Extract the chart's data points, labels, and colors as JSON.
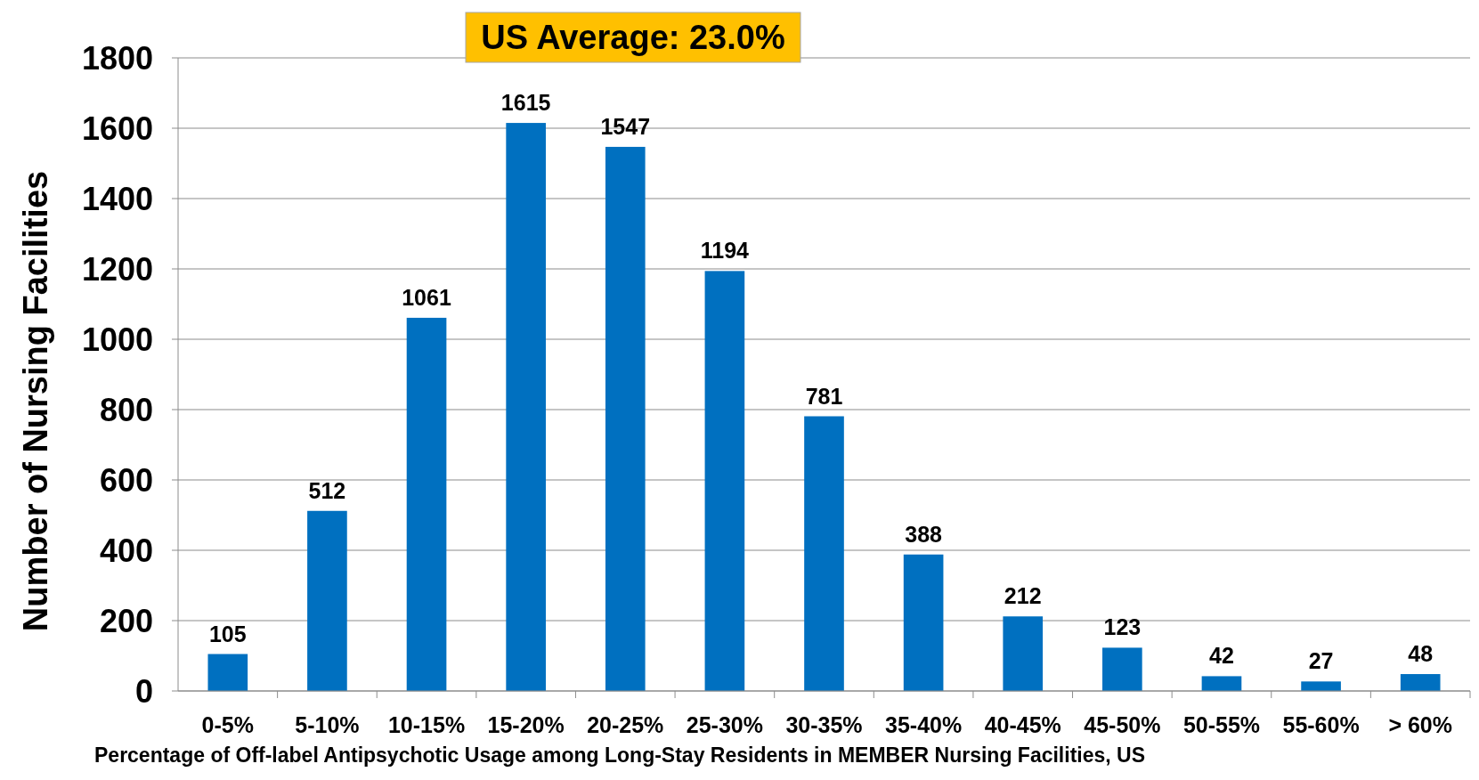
{
  "chart_data": {
    "type": "bar",
    "xlabel": "Percentage of Off-label Antipsychotic Usage among Long-Stay Residents in MEMBER Nursing Facilities, US",
    "ylabel": "Number of Nursing Facilities",
    "categories": [
      "0-5%",
      "5-10%",
      "10-15%",
      "15-20%",
      "20-25%",
      "25-30%",
      "30-35%",
      "35-40%",
      "40-45%",
      "45-50%",
      "50-55%",
      "55-60%",
      "> 60%"
    ],
    "values": [
      105,
      512,
      1061,
      1615,
      1547,
      1194,
      781,
      388,
      212,
      123,
      42,
      27,
      48
    ],
    "color": "#0070c0",
    "ylim": [
      0,
      1800
    ],
    "yticks": [
      0,
      200,
      400,
      600,
      800,
      1000,
      1200,
      1400,
      1600,
      1800
    ],
    "grid": "y",
    "data_labels": true,
    "annotations": [
      "US Average: 23.0%"
    ]
  }
}
